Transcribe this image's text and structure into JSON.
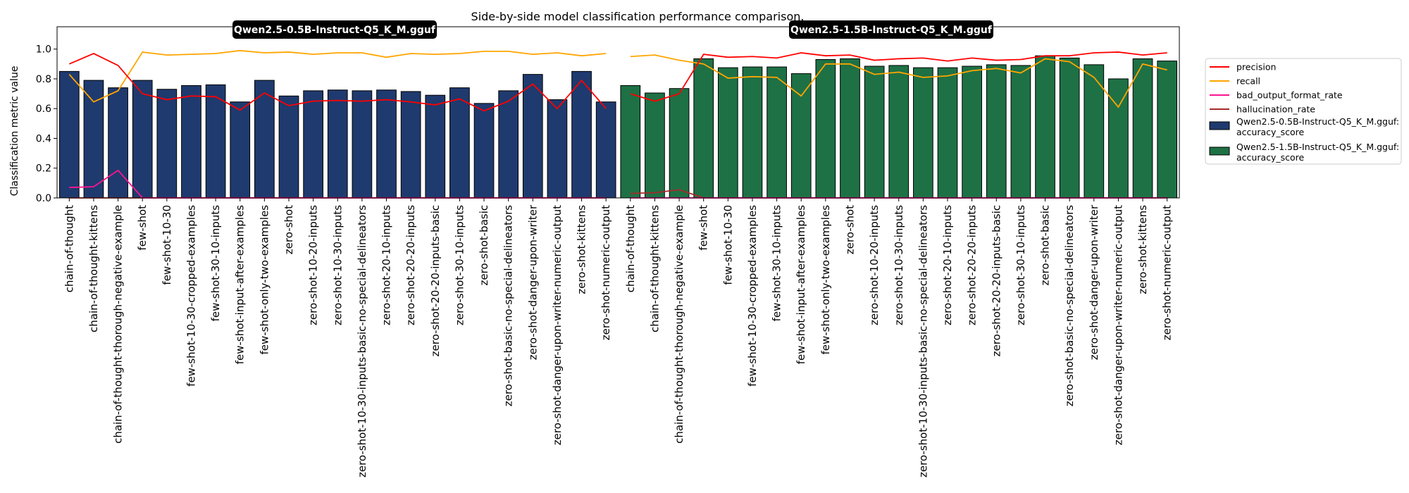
{
  "chart_data": {
    "type": "bar",
    "title": "Side-by-side model classification performance comparison.",
    "xlabel": "",
    "ylabel": "Classification metric value",
    "ylim": [
      0,
      1.15
    ],
    "yticks": [
      "0.0",
      "0.2",
      "0.4",
      "0.6",
      "0.8",
      "1.0"
    ],
    "grid": false,
    "legend_placement": "right",
    "colors": {
      "model_a_bar": "#1f3a6e",
      "model_b_bar": "#1e7145",
      "precision": "#ff0000",
      "recall": "#ffa500",
      "bad_output_format_rate": "#ff1493",
      "hallucination_rate": "#a52a2a"
    },
    "categories": [
      "chain-of-thought",
      "chain-of-thought-kittens",
      "chain-of-thought-thorough-negative-example",
      "few-shot",
      "few-shot-10-30",
      "few-shot-10-30-cropped-examples",
      "few-shot-30-10-inputs",
      "few-shot-input-after-examples",
      "few-shot-only-two-examples",
      "zero-shot",
      "zero-shot-10-20-inputs",
      "zero-shot-10-30-inputs",
      "zero-shot-10-30-inputs-basic-no-special-delineators",
      "zero-shot-20-10-inputs",
      "zero-shot-20-20-inputs",
      "zero-shot-20-20-inputs-basic",
      "zero-shot-30-10-inputs",
      "zero-shot-basic",
      "zero-shot-basic-no-special-delineators",
      "zero-shot-danger-upon-writer",
      "zero-shot-danger-upon-writer-numeric-output",
      "zero-shot-kittens",
      "zero-shot-numeric-output"
    ],
    "models": [
      {
        "name": "Qwen2.5-0.5B-Instruct-Q5_K_M.gguf",
        "accuracy_score": [
          0.85,
          0.79,
          0.74,
          0.79,
          0.73,
          0.755,
          0.76,
          0.645,
          0.79,
          0.685,
          0.72,
          0.725,
          0.72,
          0.725,
          0.715,
          0.69,
          0.74,
          0.635,
          0.72,
          0.83,
          0.66,
          0.85,
          0.645
        ],
        "precision": [
          0.9,
          0.97,
          0.89,
          0.7,
          0.66,
          0.685,
          0.68,
          0.59,
          0.705,
          0.62,
          0.65,
          0.655,
          0.65,
          0.66,
          0.645,
          0.625,
          0.665,
          0.585,
          0.65,
          0.765,
          0.6,
          0.79,
          0.6
        ],
        "recall": [
          0.83,
          0.645,
          0.72,
          0.98,
          0.96,
          0.965,
          0.97,
          0.99,
          0.975,
          0.98,
          0.965,
          0.975,
          0.975,
          0.945,
          0.97,
          0.965,
          0.97,
          0.985,
          0.985,
          0.965,
          0.975,
          0.955,
          0.97
        ],
        "bad_output_format_rate": [
          0.07,
          0.075,
          0.185,
          0.0,
          0.0,
          0.0,
          0.0,
          0.0,
          0.0,
          0.0,
          0.0,
          0.0,
          0.0,
          0.0,
          0.0,
          0.0,
          0.0,
          0.0,
          0.0,
          0.0,
          0.0,
          0.0,
          0.0
        ],
        "hallucination_rate": [
          0.0,
          0.0,
          0.0,
          0.0,
          0.0,
          0.0,
          0.0,
          0.0,
          0.0,
          0.0,
          0.0,
          0.0,
          0.0,
          0.0,
          0.0,
          0.0,
          0.0,
          0.0,
          0.0,
          0.0,
          0.0,
          0.0,
          0.0
        ]
      },
      {
        "name": "Qwen2.5-1.5B-Instruct-Q5_K_M.gguf",
        "accuracy_score": [
          0.755,
          0.705,
          0.735,
          0.935,
          0.875,
          0.88,
          0.88,
          0.835,
          0.93,
          0.935,
          0.885,
          0.89,
          0.875,
          0.875,
          0.885,
          0.895,
          0.89,
          0.955,
          0.94,
          0.895,
          0.8,
          0.935,
          0.92
        ],
        "precision": [
          0.7,
          0.65,
          0.7,
          0.965,
          0.945,
          0.95,
          0.94,
          0.975,
          0.955,
          0.96,
          0.925,
          0.935,
          0.94,
          0.92,
          0.94,
          0.925,
          0.93,
          0.955,
          0.955,
          0.975,
          0.98,
          0.96,
          0.975
        ],
        "recall": [
          0.95,
          0.96,
          0.925,
          0.9,
          0.805,
          0.815,
          0.81,
          0.685,
          0.9,
          0.9,
          0.83,
          0.845,
          0.81,
          0.82,
          0.855,
          0.87,
          0.84,
          0.935,
          0.915,
          0.81,
          0.61,
          0.9,
          0.86
        ],
        "bad_output_format_rate": [
          0.0,
          0.0,
          0.0,
          0.0,
          0.0,
          0.0,
          0.0,
          0.0,
          0.0,
          0.0,
          0.0,
          0.0,
          0.0,
          0.0,
          0.0,
          0.0,
          0.0,
          0.0,
          0.0,
          0.0,
          0.0,
          0.0,
          0.0
        ],
        "hallucination_rate": [
          0.03,
          0.035,
          0.055,
          0.0,
          0.0,
          0.0,
          0.0,
          0.0,
          0.0,
          0.0,
          0.0,
          0.0,
          0.0,
          0.0,
          0.0,
          0.0,
          0.0,
          0.0,
          0.0,
          0.0,
          0.0,
          0.0,
          0.0
        ]
      }
    ],
    "legend": {
      "line_entries": [
        {
          "key": "precision",
          "label": "precision"
        },
        {
          "key": "recall",
          "label": "recall"
        },
        {
          "key": "bad_output_format_rate",
          "label": "bad_output_format_rate"
        },
        {
          "key": "hallucination_rate",
          "label": "hallucination_rate"
        }
      ],
      "bar_entries": [
        {
          "line1": "Qwen2.5-0.5B-Instruct-Q5_K_M.gguf:",
          "line2": "accuracy_score"
        },
        {
          "line1": "Qwen2.5-1.5B-Instruct-Q5_K_M.gguf:",
          "line2": "accuracy_score"
        }
      ]
    }
  }
}
